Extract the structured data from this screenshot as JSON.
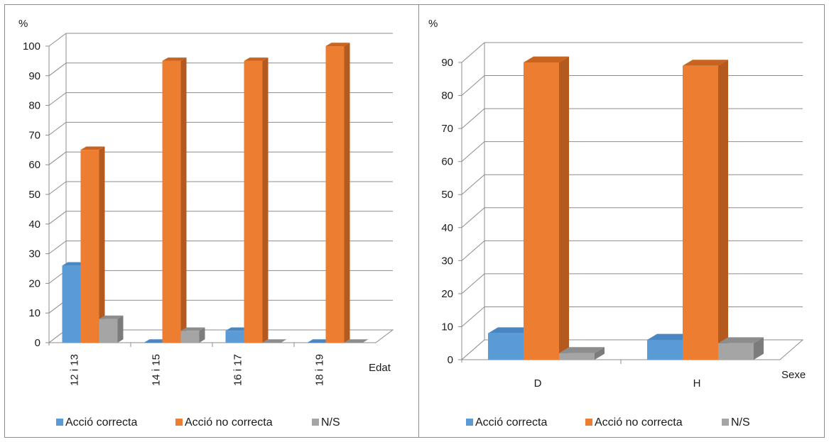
{
  "chart_data": [
    {
      "type": "bar",
      "id": "left",
      "ylabel": "%",
      "xlabel": "Edat",
      "categories": [
        "12 i 13",
        "14 i 15",
        "16 i 17",
        "18 i 19"
      ],
      "ylim": [
        0,
        100
      ],
      "yticks": [
        0,
        10,
        20,
        30,
        40,
        50,
        60,
        70,
        80,
        90,
        100
      ],
      "grid": true,
      "legend": "bottom",
      "series": [
        {
          "name": "Acció correcta",
          "values": [
            26,
            0,
            4,
            0
          ]
        },
        {
          "name": "Acció no correcta",
          "values": [
            65,
            95,
            95,
            100
          ]
        },
        {
          "name": "N/S",
          "values": [
            8,
            4,
            0,
            0
          ]
        }
      ]
    },
    {
      "type": "bar",
      "id": "right",
      "ylabel": "%",
      "xlabel": "Sexe",
      "categories": [
        "D",
        "H"
      ],
      "ylim": [
        0,
        90
      ],
      "yticks": [
        0,
        10,
        20,
        30,
        40,
        50,
        60,
        70,
        80,
        90
      ],
      "grid": true,
      "legend": "bottom",
      "series": [
        {
          "name": "Acció correcta",
          "values": [
            8,
            6
          ]
        },
        {
          "name": "Acció no correcta",
          "values": [
            90,
            89
          ]
        },
        {
          "name": "N/S",
          "values": [
            2,
            5
          ]
        }
      ]
    }
  ],
  "colors": {
    "series": [
      "#5b9bd5",
      "#ed7d31",
      "#a5a5a5"
    ],
    "series_side": [
      "#3f77b0",
      "#b45a1f",
      "#7c7c7c"
    ],
    "series_top": [
      "#4a86c2",
      "#c8641f",
      "#8d8d8d"
    ],
    "grid": "#8c8c8c",
    "axis": "#8c8c8c",
    "text": "#1a1a1a"
  }
}
